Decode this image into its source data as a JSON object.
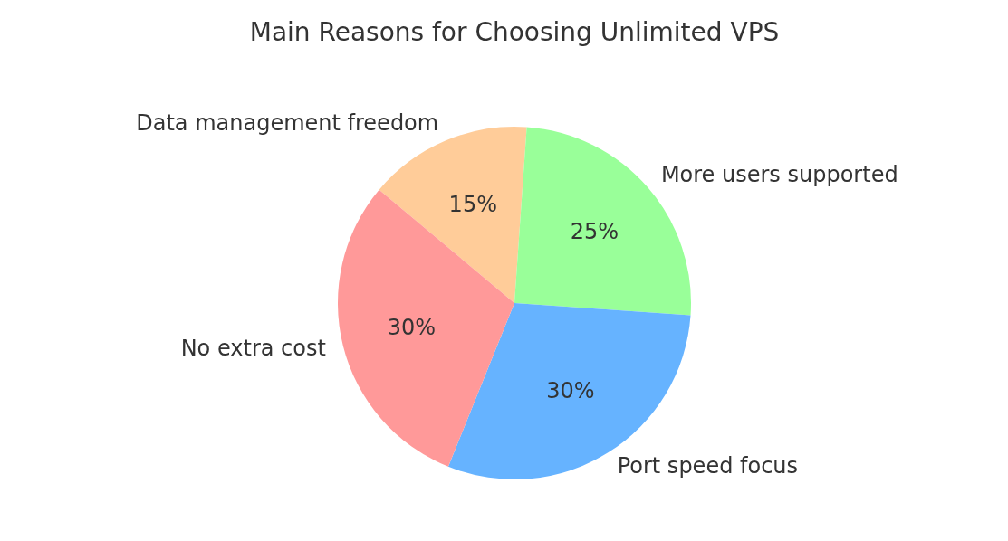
{
  "chart_data": {
    "type": "pie",
    "title": "Main Reasons for Choosing Unlimited VPS",
    "categories": [
      "Data management freedom",
      "More users supported",
      "Port speed focus",
      "No extra cost"
    ],
    "values": [
      15,
      25,
      30,
      30
    ],
    "value_labels": [
      "15%",
      "25%",
      "30%",
      "30%"
    ],
    "colors": [
      "#ffcc99",
      "#99ff99",
      "#66b3ff",
      "#ff9999"
    ],
    "legend": false
  }
}
